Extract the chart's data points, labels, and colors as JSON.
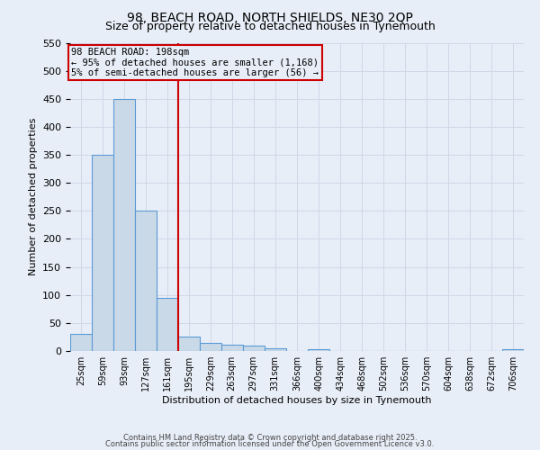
{
  "title1": "98, BEACH ROAD, NORTH SHIELDS, NE30 2QP",
  "title2": "Size of property relative to detached houses in Tynemouth",
  "xlabel": "Distribution of detached houses by size in Tynemouth",
  "ylabel": "Number of detached properties",
  "bin_labels": [
    "25sqm",
    "59sqm",
    "93sqm",
    "127sqm",
    "161sqm",
    "195sqm",
    "229sqm",
    "263sqm",
    "297sqm",
    "331sqm",
    "366sqm",
    "400sqm",
    "434sqm",
    "468sqm",
    "502sqm",
    "536sqm",
    "570sqm",
    "604sqm",
    "638sqm",
    "672sqm",
    "706sqm"
  ],
  "bin_edges": [
    25,
    59,
    93,
    127,
    161,
    195,
    229,
    263,
    297,
    331,
    366,
    400,
    434,
    468,
    502,
    536,
    570,
    604,
    638,
    672,
    706
  ],
  "bar_heights": [
    30,
    350,
    450,
    250,
    95,
    25,
    15,
    12,
    10,
    5,
    0,
    3,
    0,
    0,
    0,
    0,
    0,
    0,
    0,
    0,
    3
  ],
  "bar_color": "#c9d9e8",
  "bar_edge_color": "#5b9bd5",
  "vline_x": 195,
  "vline_color": "#cc0000",
  "ylim": [
    0,
    550
  ],
  "yticks": [
    0,
    50,
    100,
    150,
    200,
    250,
    300,
    350,
    400,
    450,
    500,
    550
  ],
  "grid_color": "#d0d8e8",
  "background_color": "#e8eef8",
  "annotation_text": "98 BEACH ROAD: 198sqm\n← 95% of detached houses are smaller (1,168)\n5% of semi-detached houses are larger (56) →",
  "annotation_box_color": "#cc0000",
  "footnote1": "Contains HM Land Registry data © Crown copyright and database right 2025.",
  "footnote2": "Contains public sector information licensed under the Open Government Licence v3.0."
}
